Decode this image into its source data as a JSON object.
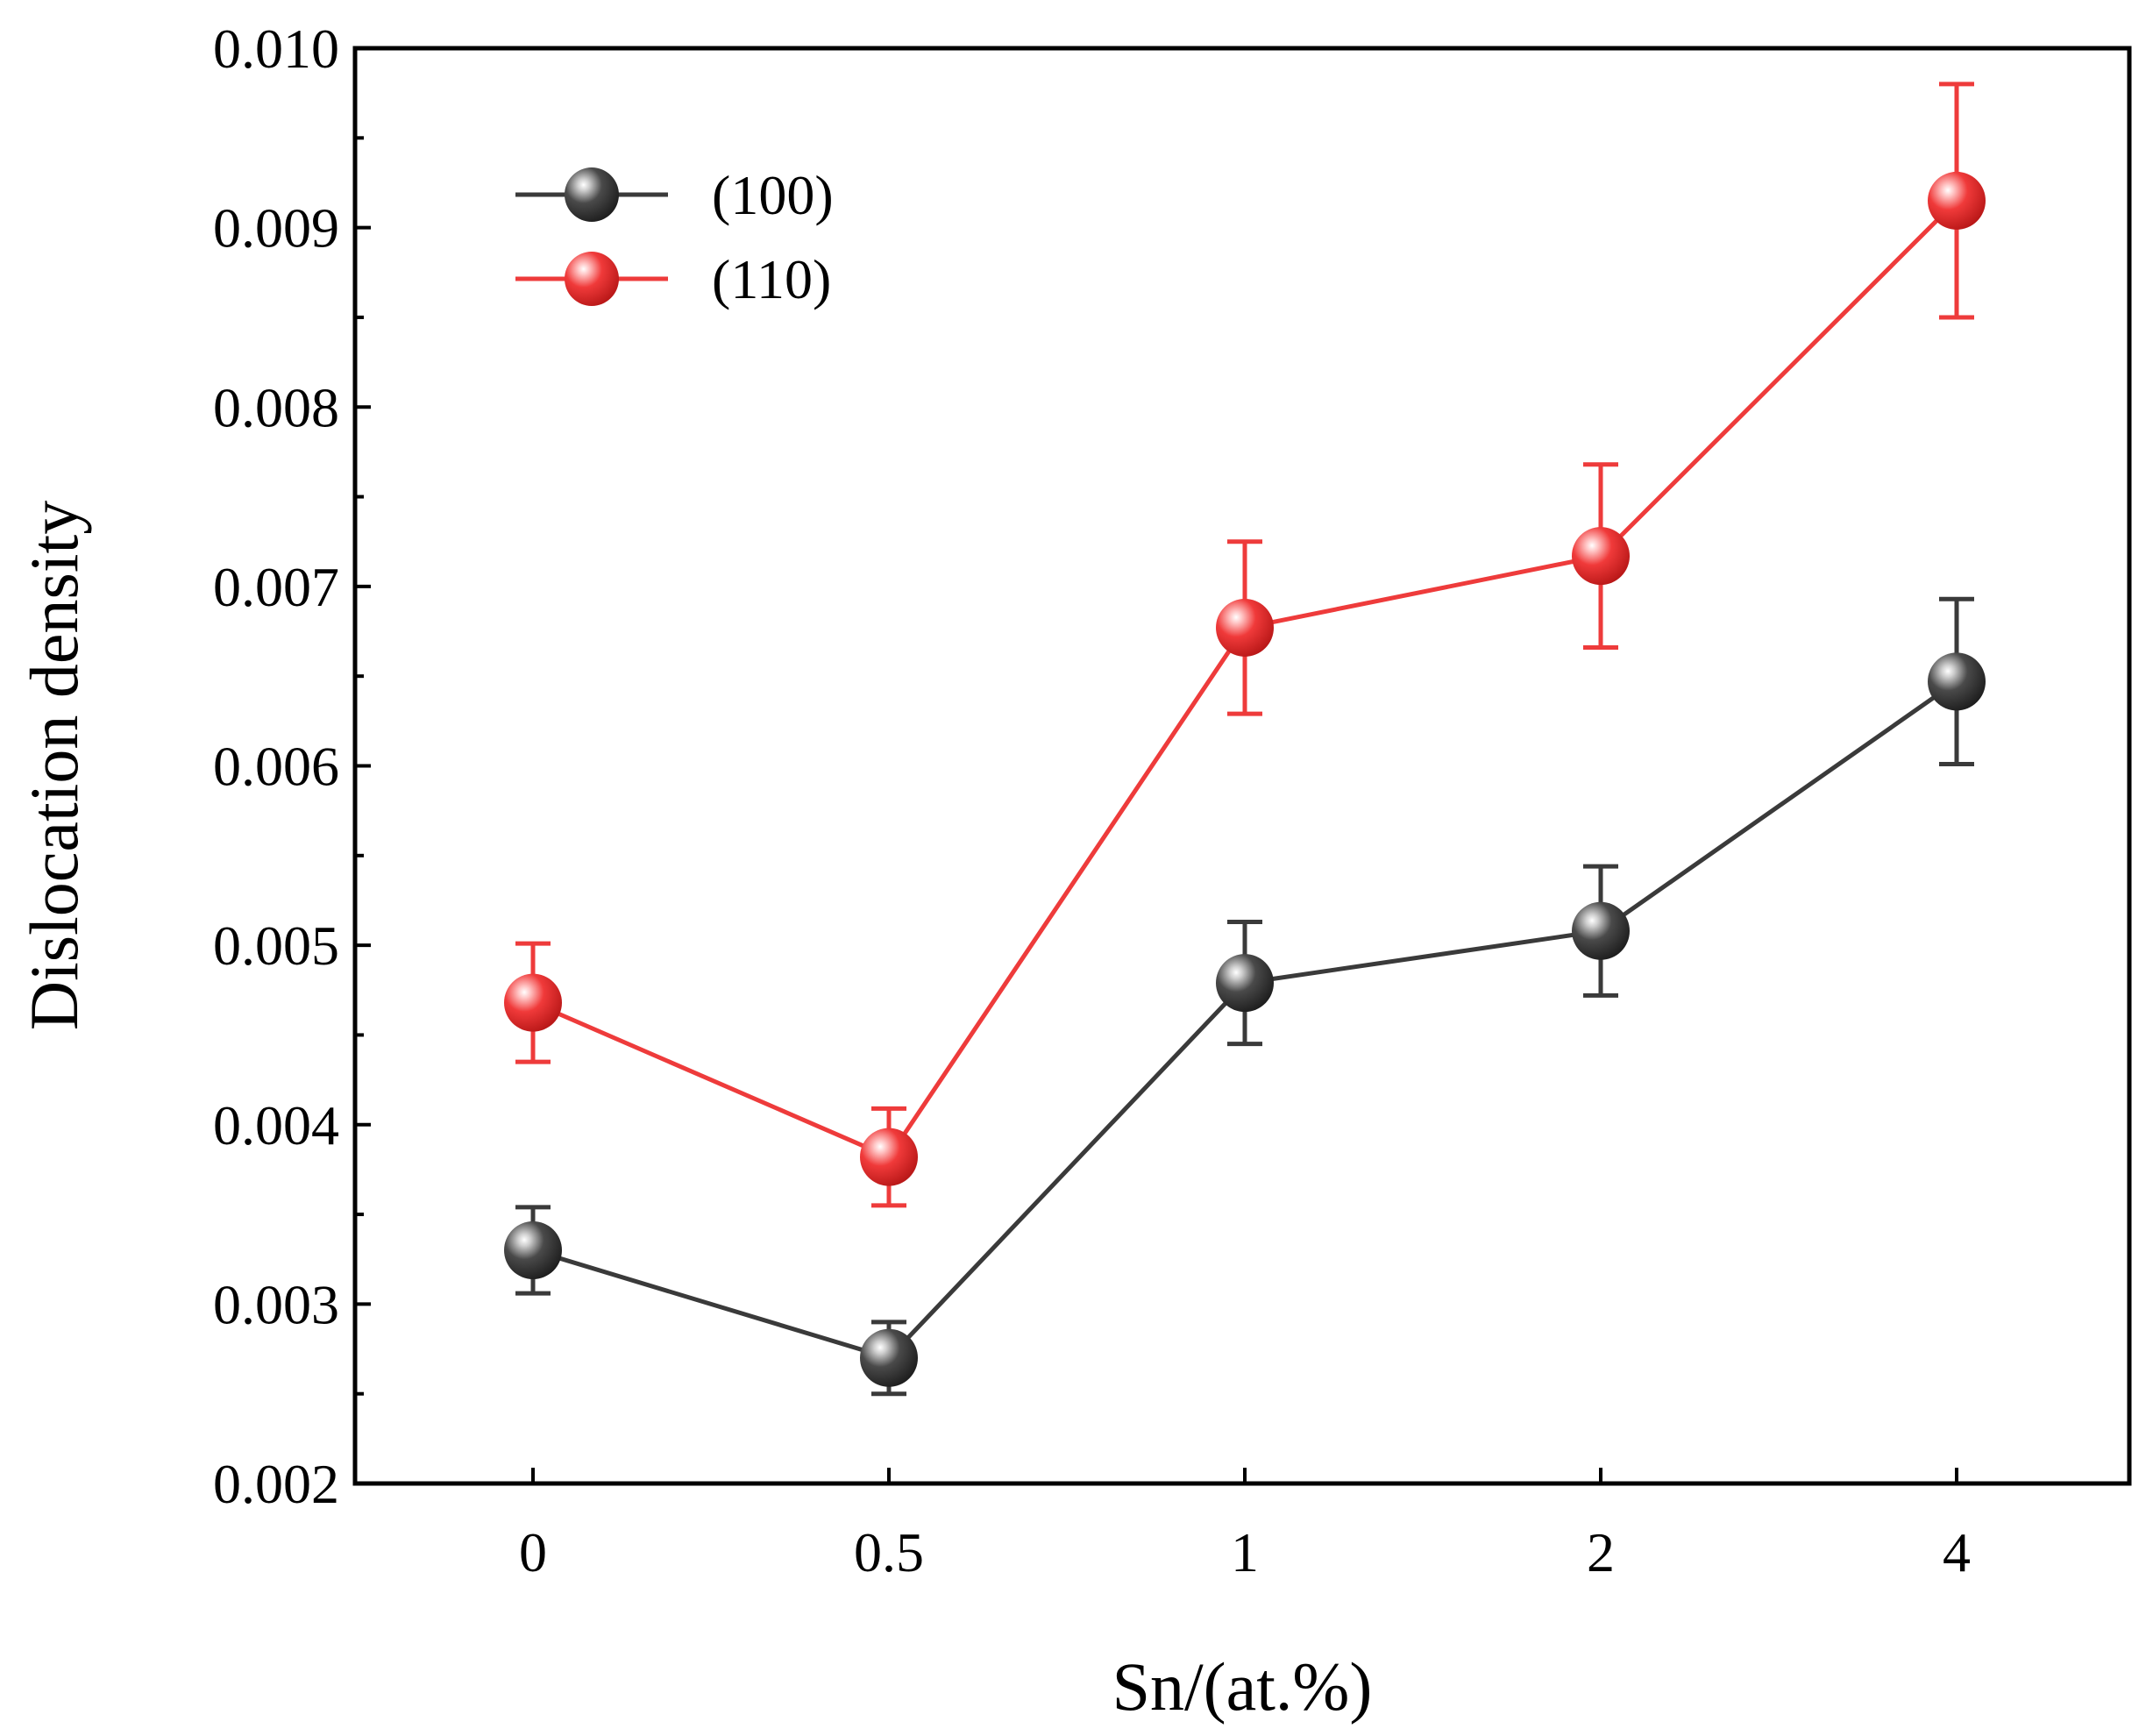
{
  "chart_data": {
    "type": "line",
    "title": "",
    "xlabel": "Sn/(at.%)",
    "ylabel": "Dislocation density",
    "categories": [
      "0",
      "0.5",
      "1",
      "2",
      "4"
    ],
    "ylim": [
      0.002,
      0.01
    ],
    "yticks": [
      "0.002",
      "0.003",
      "0.004",
      "0.005",
      "0.006",
      "0.007",
      "0.008",
      "0.009",
      "0.010"
    ],
    "ytick_values": [
      0.002,
      0.003,
      0.004,
      0.005,
      0.006,
      0.007,
      0.008,
      0.009,
      0.01
    ],
    "grid": false,
    "legend_position": "top-left",
    "series": [
      {
        "name": "(100)",
        "color": "#3a3a3a",
        "values": [
          0.0033,
          0.0027,
          0.00479,
          0.00508,
          0.00647
        ],
        "errors": [
          0.00024,
          0.0002,
          0.00034,
          0.00036,
          0.00046
        ]
      },
      {
        "name": "(110)",
        "color": "#ee3b3b",
        "values": [
          0.00468,
          0.00382,
          0.00677,
          0.00717,
          0.00915
        ],
        "errors": [
          0.00033,
          0.00027,
          0.00048,
          0.00051,
          0.00065
        ]
      }
    ]
  }
}
